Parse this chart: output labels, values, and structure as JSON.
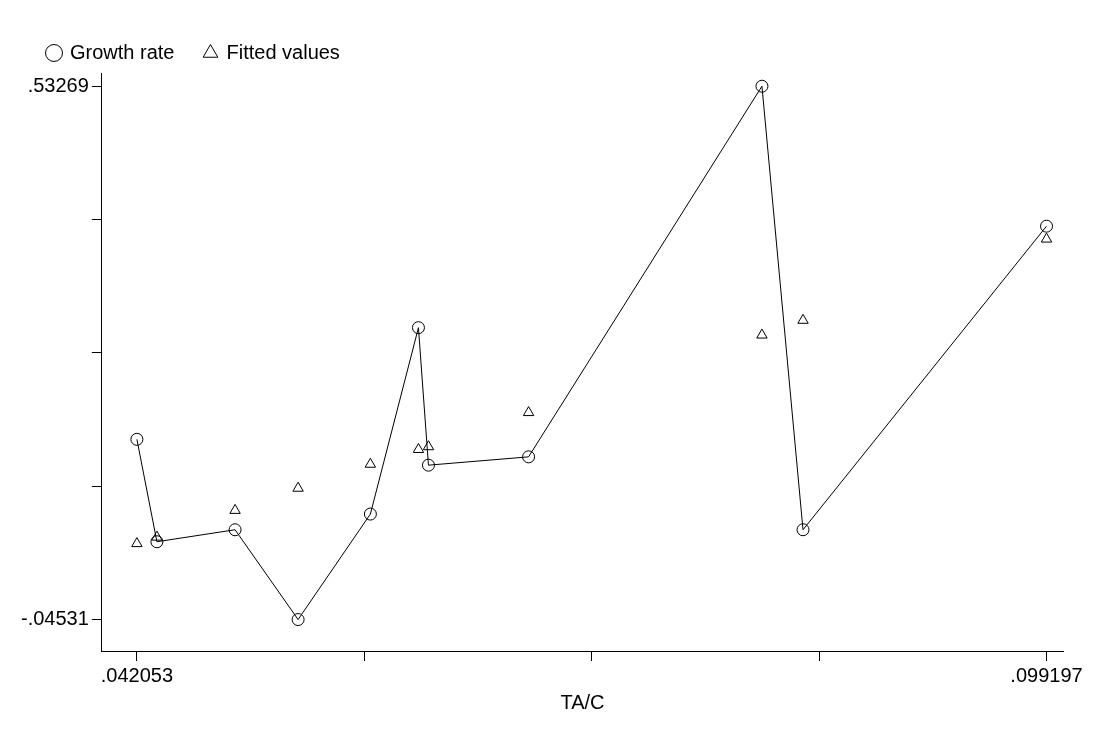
{
  "chart_data": {
    "type": "line",
    "xlabel": "TA/C",
    "x": [
      0.042053,
      0.04331,
      0.04822,
      0.05218,
      0.05672,
      0.05974,
      0.06037,
      0.06666,
      0.08132,
      0.0839,
      0.099197
    ],
    "series": [
      {
        "name": "Growth rate",
        "type": "line",
        "marker": "circle",
        "color": "#000000",
        "values": [
          0.15,
          0.039,
          0.052,
          -0.04531,
          0.069,
          0.271,
          0.122,
          0.131,
          0.53269,
          0.052,
          0.381
        ]
      },
      {
        "name": "Fitted values",
        "type": "scatter",
        "marker": "triangle",
        "color": "#000000",
        "values": [
          0.037,
          0.044,
          0.073,
          0.097,
          0.123,
          0.139,
          0.142,
          0.179,
          0.263,
          0.279,
          0.367
        ]
      }
    ],
    "xlim": [
      0.03985,
      0.10024
    ],
    "ylim": [
      -0.0794,
      0.547
    ],
    "xticks": [
      {
        "value": 0.042053,
        "label": ".042053"
      },
      {
        "value": 0.056339,
        "label": null
      },
      {
        "value": 0.070625,
        "label": null
      },
      {
        "value": 0.084911,
        "label": null
      },
      {
        "value": 0.099197,
        "label": ".099197"
      }
    ],
    "yticks": [
      {
        "value": -0.04531,
        "label": "-.04531"
      },
      {
        "value": 0.0992,
        "label": null
      },
      {
        "value": 0.2437,
        "label": null
      },
      {
        "value": 0.3882,
        "label": null
      },
      {
        "value": 0.53269,
        "label": ".53269"
      }
    ],
    "legend": "top",
    "grid": false
  }
}
